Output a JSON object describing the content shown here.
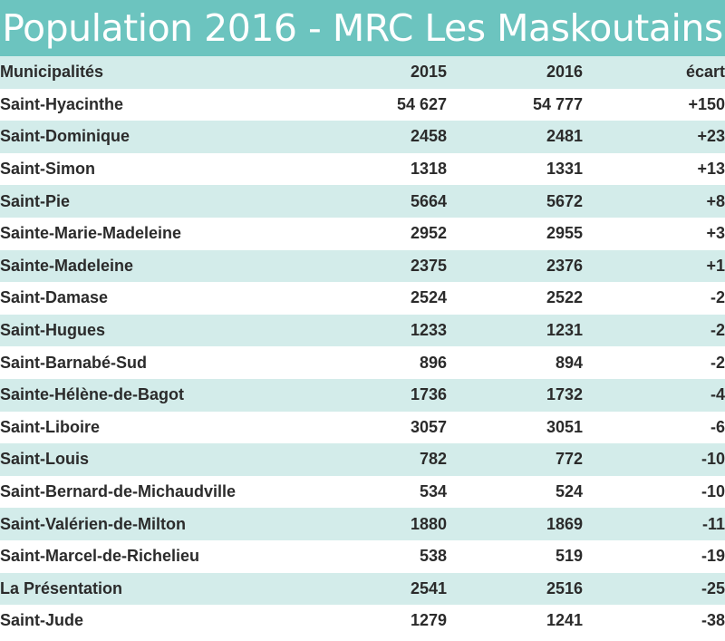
{
  "chart_data": {
    "type": "table",
    "title": "Population 2016 - MRC Les Maskoutains",
    "columns": [
      "Municipalités",
      "2015",
      "2016",
      "écart"
    ],
    "rows": [
      {
        "name": "Saint-Hyacinthe",
        "y2015": "54 627",
        "y2016": "54 777",
        "ecart": "+150"
      },
      {
        "name": "Saint-Dominique",
        "y2015": "2458",
        "y2016": "2481",
        "ecart": "+23"
      },
      {
        "name": "Saint-Simon",
        "y2015": "1318",
        "y2016": "1331",
        "ecart": "+13"
      },
      {
        "name": "Saint-Pie",
        "y2015": "5664",
        "y2016": "5672",
        "ecart": "+8"
      },
      {
        "name": "Sainte-Marie-Madeleine",
        "y2015": "2952",
        "y2016": "2955",
        "ecart": "+3"
      },
      {
        "name": "Sainte-Madeleine",
        "y2015": "2375",
        "y2016": "2376",
        "ecart": "+1"
      },
      {
        "name": "Saint-Damase",
        "y2015": "2524",
        "y2016": "2522",
        "ecart": "-2"
      },
      {
        "name": "Saint-Hugues",
        "y2015": "1233",
        "y2016": "1231",
        "ecart": "-2"
      },
      {
        "name": "Saint-Barnabé-Sud",
        "y2015": "896",
        "y2016": "894",
        "ecart": "-2"
      },
      {
        "name": "Sainte-Hélène-de-Bagot",
        "y2015": "1736",
        "y2016": "1732",
        "ecart": "-4"
      },
      {
        "name": "Saint-Liboire",
        "y2015": "3057",
        "y2016": "3051",
        "ecart": "-6"
      },
      {
        "name": "Saint-Louis",
        "y2015": "782",
        "y2016": "772",
        "ecart": "-10"
      },
      {
        "name": "Saint-Bernard-de-Michaudville",
        "y2015": "534",
        "y2016": "524",
        "ecart": "-10"
      },
      {
        "name": "Saint-Valérien-de-Milton",
        "y2015": "1880",
        "y2016": "1869",
        "ecart": "-11"
      },
      {
        "name": "Saint-Marcel-de-Richelieu",
        "y2015": "538",
        "y2016": "519",
        "ecart": "-19"
      },
      {
        "name": "La Présentation",
        "y2015": "2541",
        "y2016": "2516",
        "ecart": "-25"
      },
      {
        "name": "Saint-Jude",
        "y2015": "1279",
        "y2016": "1241",
        "ecart": "-38"
      }
    ]
  },
  "colors": {
    "title_background": "#6cc4bf",
    "stripe": "#d3ecea",
    "text": "#2b2b2b"
  }
}
